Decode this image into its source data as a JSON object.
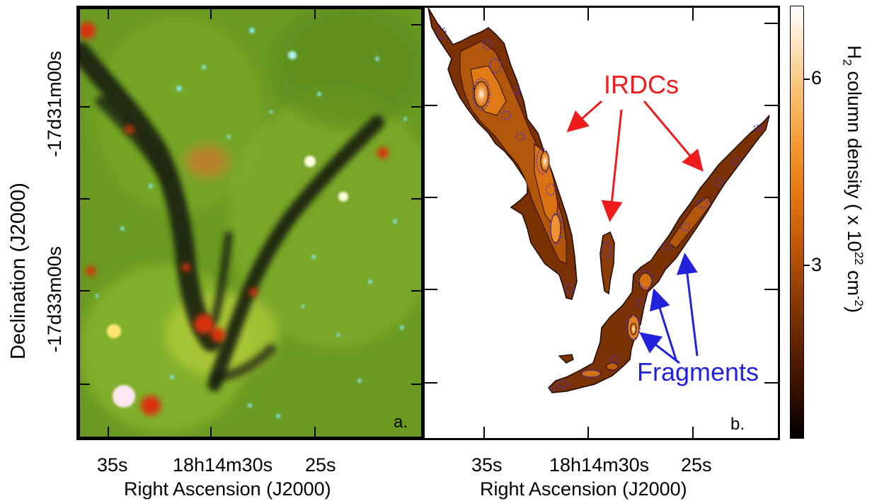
{
  "left_panel": {
    "ylabel": "Declination (J2000)",
    "y_ticks": [
      "-17d31m00s",
      "-17d33m00s"
    ],
    "x_ticks": [
      "35s",
      "18h14m30s",
      "25s"
    ],
    "xlabel": "Right Ascension (J2000)",
    "panel_label": "a."
  },
  "right_panel": {
    "x_ticks": [
      "35s",
      "18h14m30s",
      "25s"
    ],
    "xlabel": "Right Ascension (J2000)",
    "panel_label": "b.",
    "annotation_irdcs": "IRDCs",
    "annotation_fragments": "Fragments"
  },
  "colorbar": {
    "label_main": "H",
    "label_sub": "2",
    "label_rest": " column density ( x 10",
    "label_sup": "22",
    "label_unit": " cm",
    "label_unit_sup": "-2",
    "label_close": ")",
    "ticks": [
      "6",
      "3"
    ],
    "tick_values": [
      6,
      3
    ],
    "range": [
      0,
      7.5
    ]
  },
  "colors": {
    "irdc_arrow": "#ee1c1c",
    "fragment_arrow": "#2222dd",
    "fragment_contour": "#5533cc"
  }
}
